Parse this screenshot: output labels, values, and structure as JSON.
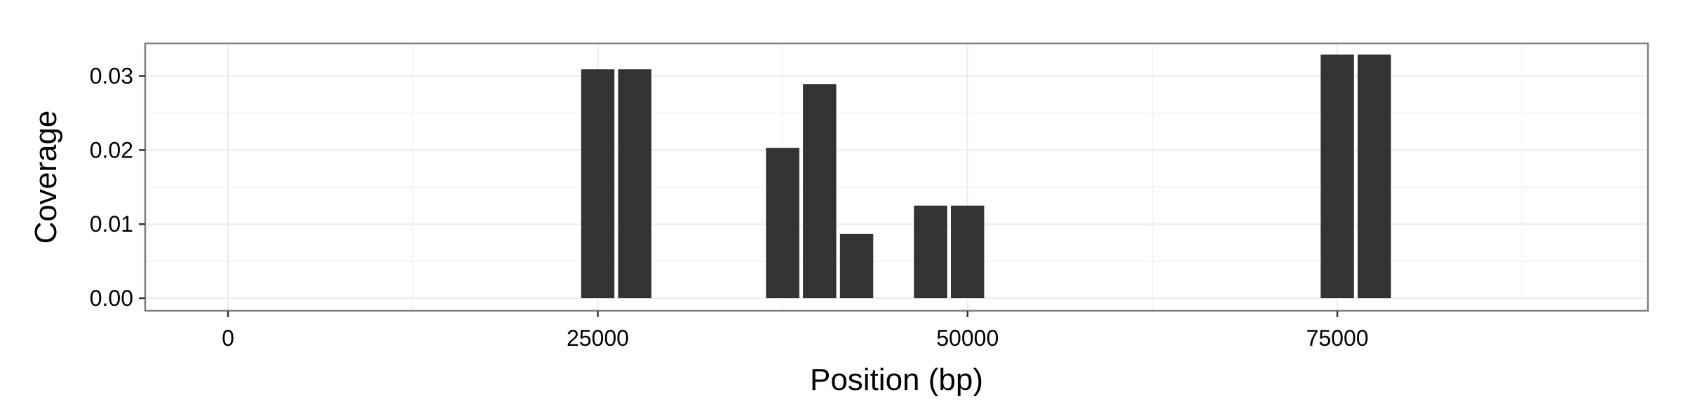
{
  "chart_data": {
    "type": "bar",
    "xlabel": "Position (bp)",
    "ylabel": "Coverage",
    "xlim": [
      -5600,
      96000
    ],
    "ylim": [
      -0.0017,
      0.0344
    ],
    "xticks": [
      0,
      25000,
      50000,
      75000
    ],
    "xtick_labels": [
      "0",
      "25000",
      "50000",
      "75000"
    ],
    "yticks": [
      0.0,
      0.01,
      0.02,
      0.03
    ],
    "ytick_labels": [
      "0.00",
      "0.01",
      "0.02",
      "0.03"
    ],
    "x_minor_gridlines": [
      12500,
      37500,
      62500,
      87500
    ],
    "y_minor_gridlines": [
      0.005,
      0.015,
      0.025
    ],
    "bar_width": 2250,
    "grid": true,
    "bar_color": "#333333",
    "panel_border_color": "#7f7f7f",
    "grid_color": "#ebebeb",
    "bars": [
      {
        "x": 25000,
        "y": 0.0309
      },
      {
        "x": 27500,
        "y": 0.0309
      },
      {
        "x": 37500,
        "y": 0.0203
      },
      {
        "x": 40000,
        "y": 0.0289
      },
      {
        "x": 42500,
        "y": 0.0087
      },
      {
        "x": 47500,
        "y": 0.0125
      },
      {
        "x": 50000,
        "y": 0.0125
      },
      {
        "x": 75000,
        "y": 0.0329
      },
      {
        "x": 77500,
        "y": 0.0329
      }
    ]
  }
}
